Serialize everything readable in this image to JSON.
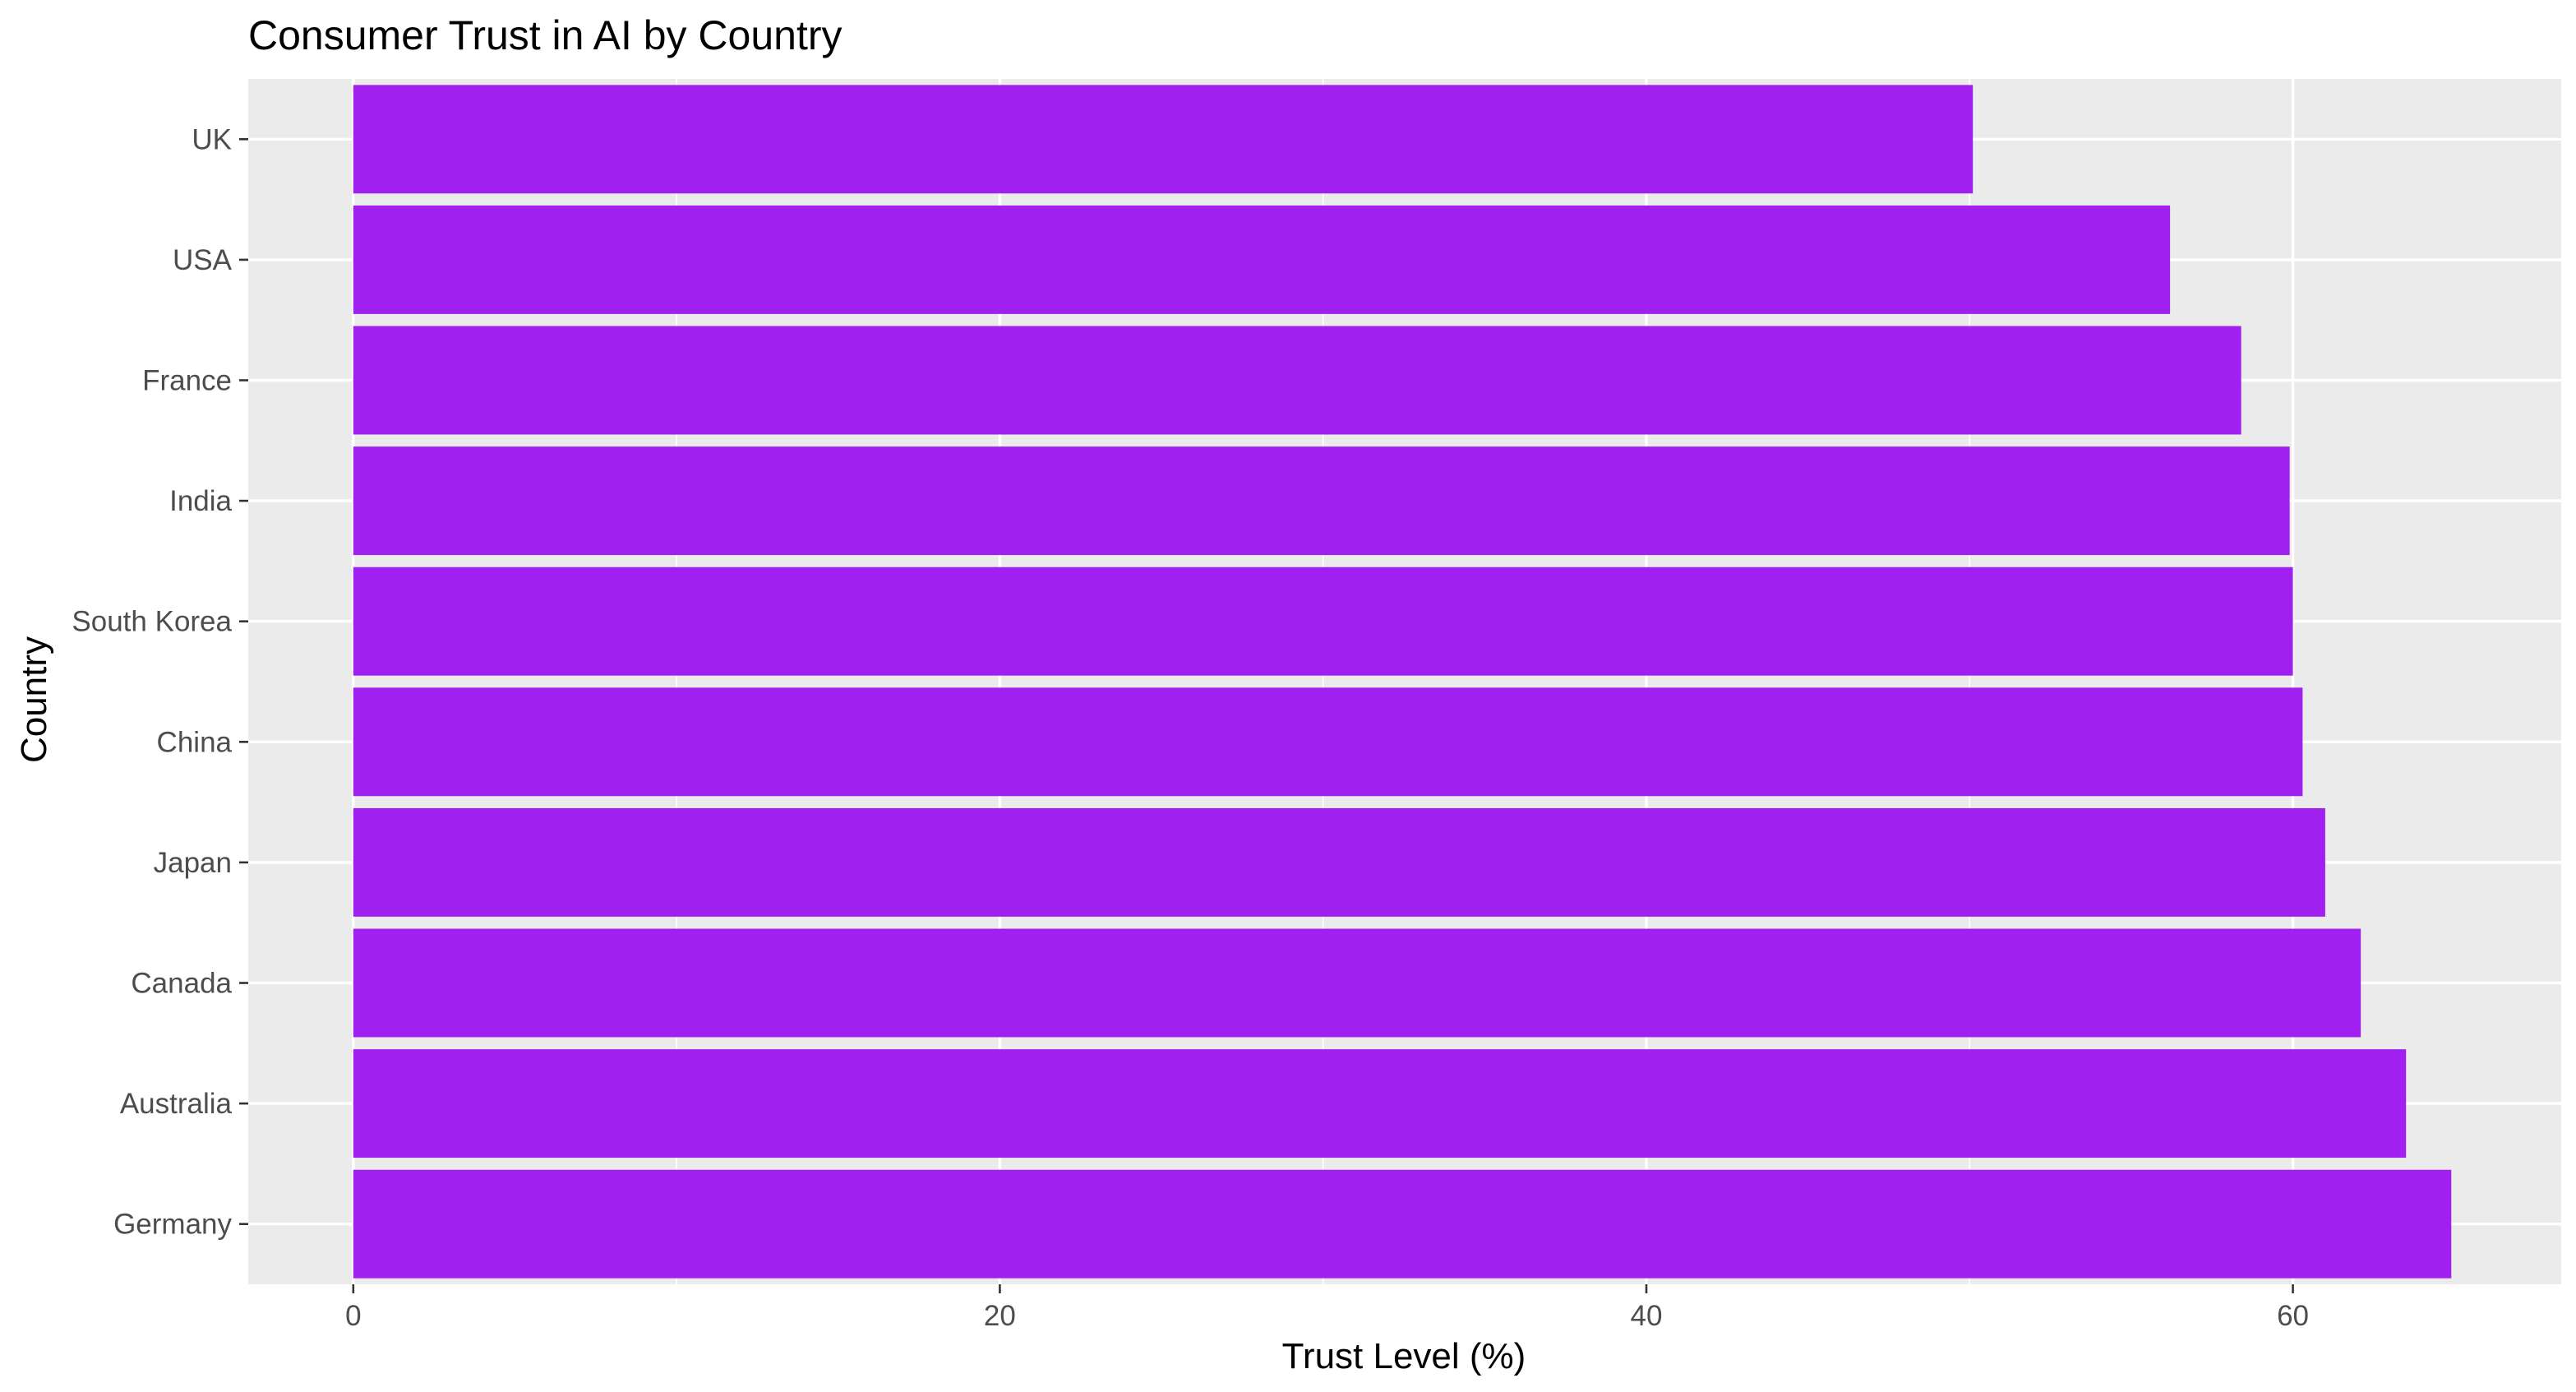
{
  "chart_data": {
    "type": "bar",
    "orientation": "horizontal",
    "title": "Consumer Trust in AI by Country",
    "xlabel": "Trust Level (%)",
    "ylabel": "Country",
    "categories": [
      "UK",
      "USA",
      "France",
      "India",
      "South Korea",
      "China",
      "Japan",
      "Canada",
      "Australia",
      "Germany"
    ],
    "values": [
      50.1,
      56.2,
      58.4,
      59.9,
      60.0,
      60.3,
      61.0,
      62.1,
      63.5,
      64.9
    ],
    "xlim": [
      -3.25,
      68.3
    ],
    "xticks": [
      0,
      20,
      40,
      60
    ],
    "xtick_labels": [
      "0",
      "20",
      "40",
      "60"
    ],
    "bar_color": "#A020F0",
    "panel_background": "#EBEBEB",
    "grid_color": "#FFFFFF",
    "grid": true,
    "legend": "none"
  }
}
